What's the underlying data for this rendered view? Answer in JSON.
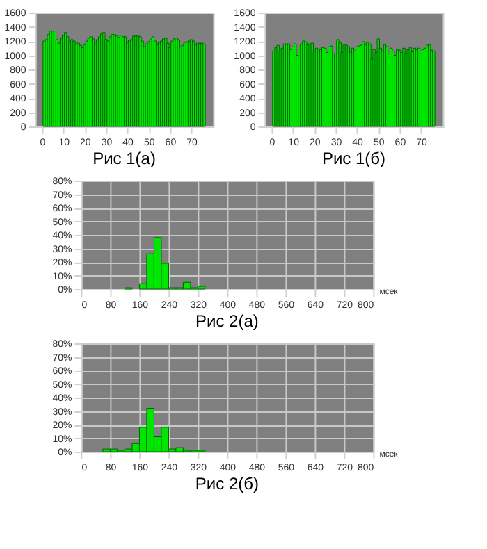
{
  "chart_data": [
    {
      "type": "bar",
      "title": "Рис 1(а)",
      "color": "#00e600",
      "grid": false,
      "xlim": [
        0,
        77
      ],
      "xticks": [
        0,
        10,
        20,
        30,
        40,
        50,
        60,
        70
      ],
      "ylim": [
        0,
        1600
      ],
      "yticks": [
        0,
        200,
        400,
        600,
        800,
        1000,
        1200,
        1400,
        1600
      ],
      "x": [
        1,
        2,
        3,
        4,
        5,
        6,
        7,
        8,
        9,
        10,
        11,
        12,
        13,
        14,
        15,
        16,
        17,
        18,
        19,
        20,
        21,
        22,
        23,
        24,
        25,
        26,
        27,
        28,
        29,
        30,
        31,
        32,
        33,
        34,
        35,
        36,
        37,
        38,
        39,
        40,
        41,
        42,
        43,
        44,
        45,
        46,
        47,
        48,
        49,
        50,
        51,
        52,
        53,
        54,
        55,
        56,
        57,
        58,
        59,
        60,
        61,
        62,
        63,
        64,
        65,
        66,
        67,
        68,
        69,
        70,
        71,
        72,
        73,
        74,
        75,
        76
      ],
      "values": [
        1200,
        1220,
        1290,
        1340,
        1340,
        1340,
        1220,
        1170,
        1240,
        1280,
        1320,
        1260,
        1190,
        1220,
        1200,
        1160,
        1170,
        1140,
        1110,
        1150,
        1200,
        1240,
        1260,
        1230,
        1160,
        1220,
        1260,
        1300,
        1320,
        1220,
        1200,
        1260,
        1290,
        1290,
        1270,
        1250,
        1280,
        1260,
        1260,
        1180,
        1210,
        1220,
        1270,
        1270,
        1270,
        1260,
        1200,
        1120,
        1160,
        1190,
        1220,
        1260,
        1200,
        1150,
        1180,
        1200,
        1230,
        1240,
        1170,
        1110,
        1200,
        1230,
        1240,
        1220,
        1120,
        1140,
        1180,
        1190,
        1200,
        1220,
        1200,
        1150,
        1170,
        1170,
        1170,
        1160
      ]
    },
    {
      "type": "bar",
      "title": "Рис 1(б)",
      "color": "#00e600",
      "grid": false,
      "xlim": [
        0,
        77
      ],
      "xticks": [
        0,
        10,
        20,
        30,
        40,
        50,
        60,
        70
      ],
      "ylim": [
        0,
        1600
      ],
      "yticks": [
        0,
        200,
        400,
        600,
        800,
        1000,
        1200,
        1400,
        1600
      ],
      "x": [
        1,
        2,
        3,
        4,
        5,
        6,
        7,
        8,
        9,
        10,
        11,
        12,
        13,
        14,
        15,
        16,
        17,
        18,
        19,
        20,
        21,
        22,
        23,
        24,
        25,
        26,
        27,
        28,
        29,
        30,
        31,
        32,
        33,
        34,
        35,
        36,
        37,
        38,
        39,
        40,
        41,
        42,
        43,
        44,
        45,
        46,
        47,
        48,
        49,
        50,
        51,
        52,
        53,
        54,
        55,
        56,
        57,
        58,
        59,
        60,
        61,
        62,
        63,
        64,
        65,
        66,
        67,
        68,
        69,
        70,
        71,
        72,
        73,
        74,
        75,
        76
      ],
      "values": [
        1060,
        1110,
        1140,
        1060,
        1100,
        1160,
        1160,
        1160,
        1080,
        1120,
        1160,
        1000,
        1120,
        1160,
        1200,
        1190,
        1150,
        1160,
        1170,
        1060,
        1100,
        1090,
        1080,
        1110,
        1100,
        1040,
        1120,
        1130,
        1020,
        1020,
        1220,
        1180,
        1040,
        1150,
        1140,
        1120,
        1040,
        1100,
        1060,
        1120,
        1130,
        1140,
        1190,
        1150,
        1180,
        1160,
        950,
        1080,
        1040,
        1230,
        1100,
        1060,
        1150,
        1120,
        1020,
        1100,
        1060,
        1000,
        1080,
        1070,
        1040,
        1100,
        1030,
        1080,
        1110,
        1050,
        1100,
        1080,
        1100,
        1060,
        1080,
        1100,
        1140,
        1150,
        1070,
        1060
      ]
    },
    {
      "type": "histogram",
      "title": "Рис 2(а)",
      "xlabel": "мсек",
      "color": "#00e600",
      "grid": true,
      "xlim": [
        0,
        800
      ],
      "xticks": [
        0,
        80,
        160,
        240,
        320,
        400,
        480,
        560,
        640,
        720,
        800
      ],
      "ylim": [
        0,
        80
      ],
      "yticks": [
        {
          "value": 0,
          "label": "0%"
        },
        {
          "value": 10,
          "label": "10%"
        },
        {
          "value": 20,
          "label": "20%"
        },
        {
          "value": 30,
          "label": "30%"
        },
        {
          "value": 40,
          "label": "40%"
        },
        {
          "value": 50,
          "label": "50%"
        },
        {
          "value": 60,
          "label": "60%"
        },
        {
          "value": 70,
          "label": "70%"
        },
        {
          "value": 80,
          "label": "80%"
        }
      ],
      "bins": [
        120,
        140,
        160,
        180,
        200,
        220,
        240,
        260,
        280,
        300,
        320,
        340
      ],
      "values": [
        1,
        0,
        4,
        26,
        38,
        19,
        1,
        1,
        5,
        1,
        2
      ]
    },
    {
      "type": "histogram",
      "title": "Рис 2(б)",
      "xlabel": "мсек",
      "color": "#00e600",
      "grid": true,
      "xlim": [
        0,
        800
      ],
      "xticks": [
        0,
        80,
        160,
        240,
        320,
        400,
        480,
        560,
        640,
        720,
        800
      ],
      "ylim": [
        0,
        80
      ],
      "yticks": [
        {
          "value": 0,
          "label": "0%"
        },
        {
          "value": 10,
          "label": "10%"
        },
        {
          "value": 20,
          "label": "20%"
        },
        {
          "value": 30,
          "label": "30%"
        },
        {
          "value": 40,
          "label": "40%"
        },
        {
          "value": 50,
          "label": "50%"
        },
        {
          "value": 60,
          "label": "60%"
        },
        {
          "value": 70,
          "label": "70%"
        },
        {
          "value": 80,
          "label": "80%"
        }
      ],
      "bins": [
        60,
        80,
        100,
        120,
        140,
        160,
        180,
        200,
        220,
        240,
        260,
        280,
        300,
        320,
        340
      ],
      "values": [
        2,
        2,
        1,
        2,
        6,
        18,
        32,
        11,
        18,
        2,
        3,
        1,
        1,
        1
      ]
    }
  ]
}
